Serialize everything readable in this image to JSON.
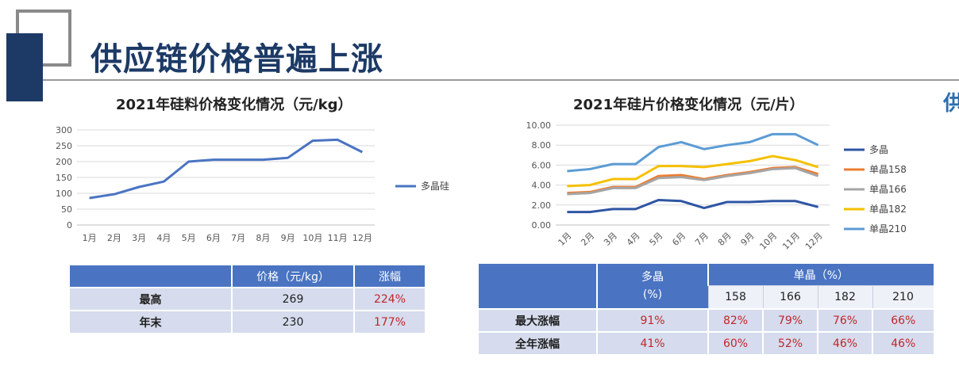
{
  "slide": {
    "title": "供应链价格普遍上涨",
    "cut_text": "供"
  },
  "chart_data": [
    {
      "type": "line",
      "title": "2021年硅料价格变化情况（元/kg）",
      "categories": [
        "1月",
        "2月",
        "3月",
        "4月",
        "5月",
        "6月",
        "7月",
        "8月",
        "9月",
        "10月",
        "11月",
        "12月"
      ],
      "series": [
        {
          "name": "多晶硅",
          "color": "#4a74c2",
          "values": [
            85,
            97,
            120,
            137,
            200,
            206,
            206,
            206,
            212,
            266,
            269,
            230
          ]
        }
      ],
      "ylim": [
        0,
        300
      ],
      "yticks": [
        "0",
        "50",
        "100",
        "150",
        "200",
        "250",
        "300"
      ],
      "grid": true,
      "legend": "right"
    },
    {
      "type": "line",
      "title": "2021年硅片价格变化情况（元/片）",
      "categories": [
        "1月",
        "2月",
        "3月",
        "4月",
        "5月",
        "6月",
        "7月",
        "8月",
        "9月",
        "10月",
        "11月",
        "12月"
      ],
      "series": [
        {
          "name": "多晶",
          "color": "#2f55a4",
          "values": [
            1.3,
            1.3,
            1.6,
            1.6,
            2.5,
            2.4,
            1.7,
            2.3,
            2.3,
            2.4,
            2.4,
            1.8
          ]
        },
        {
          "name": "单晶158",
          "color": "#ed7d31",
          "values": [
            3.2,
            3.3,
            3.8,
            3.8,
            4.9,
            5.0,
            4.6,
            5.0,
            5.3,
            5.7,
            5.8,
            5.1
          ]
        },
        {
          "name": "单晶166",
          "color": "#a5a5a5",
          "values": [
            3.1,
            3.2,
            3.7,
            3.7,
            4.7,
            4.8,
            4.5,
            4.9,
            5.2,
            5.6,
            5.7,
            4.9
          ]
        },
        {
          "name": "单晶182",
          "color": "#f5c000",
          "values": [
            3.9,
            4.0,
            4.6,
            4.6,
            5.9,
            5.9,
            5.8,
            6.1,
            6.4,
            6.9,
            6.5,
            5.8
          ]
        },
        {
          "name": "单晶210",
          "color": "#5b9bd5",
          "values": [
            5.4,
            5.6,
            6.1,
            6.1,
            7.8,
            8.3,
            7.6,
            8.0,
            8.3,
            9.1,
            9.1,
            8.0
          ]
        }
      ],
      "ylim": [
        0,
        10
      ],
      "yticks": [
        "0.00",
        "2.00",
        "4.00",
        "6.00",
        "8.00",
        "10.00"
      ],
      "grid": true,
      "legend": "right"
    }
  ],
  "left_table": {
    "headers": [
      "",
      "价格（元/kg）",
      "涨幅"
    ],
    "rows": [
      {
        "label": "最高",
        "price": "269",
        "change": "224%"
      },
      {
        "label": "年末",
        "price": "230",
        "change": "177%"
      }
    ]
  },
  "right_table": {
    "poly_header": "多晶",
    "poly_unit": "(%)",
    "mono_header": "单晶（%）",
    "mono_sizes": [
      "158",
      "166",
      "182",
      "210"
    ],
    "rows": [
      {
        "label": "最大涨幅",
        "values": [
          "91%",
          "82%",
          "79%",
          "76%",
          "66%"
        ]
      },
      {
        "label": "全年涨幅",
        "values": [
          "41%",
          "60%",
          "52%",
          "46%",
          "46%"
        ]
      }
    ]
  }
}
